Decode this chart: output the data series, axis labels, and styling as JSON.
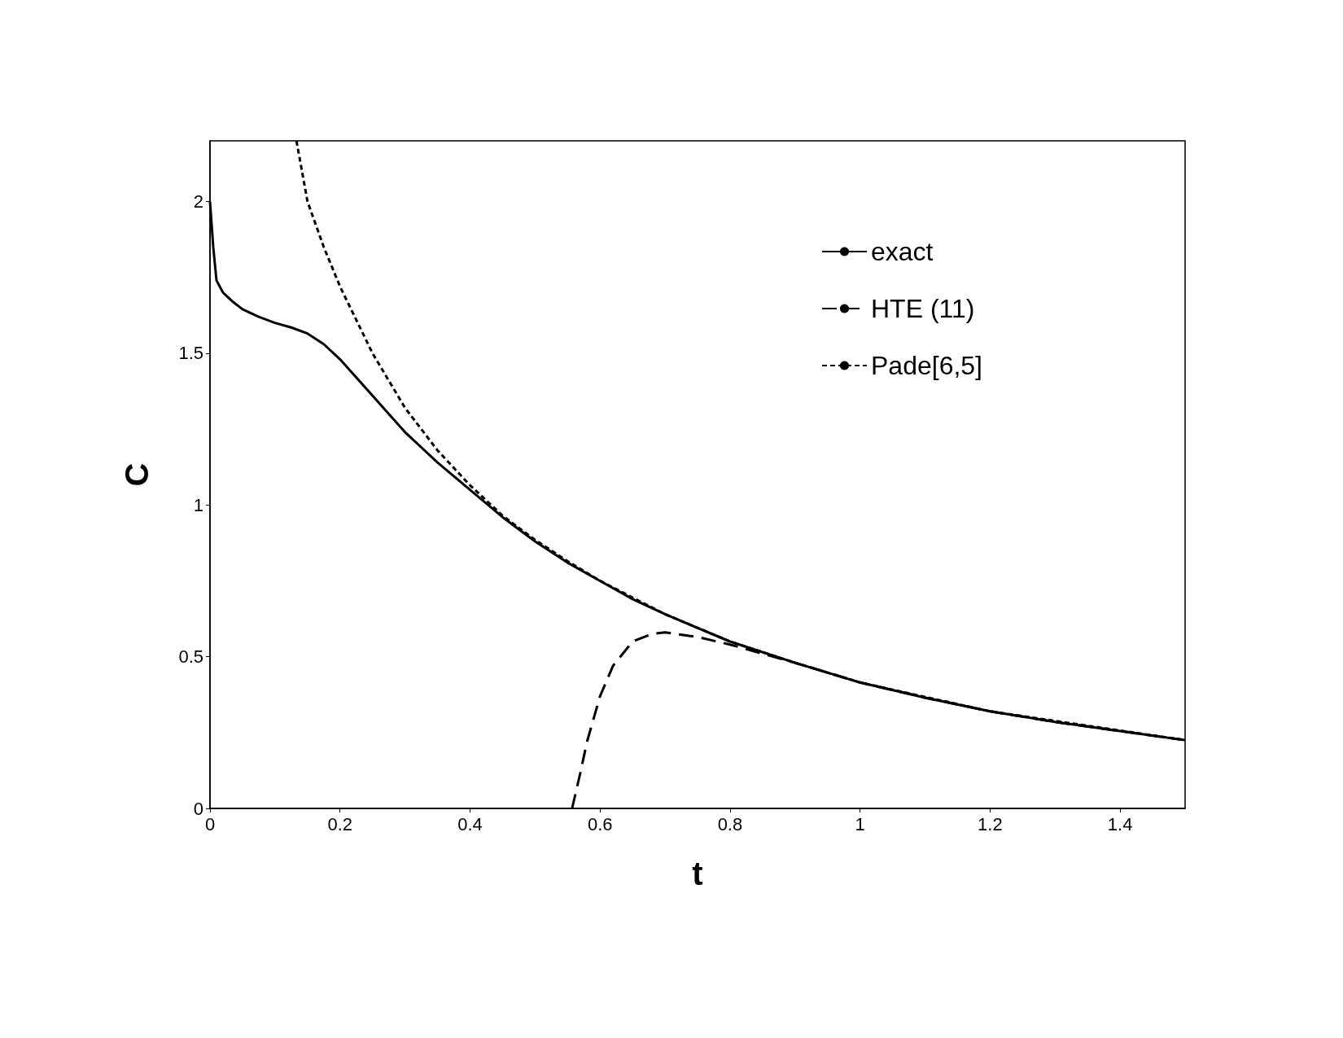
{
  "chart_data": {
    "type": "line",
    "xlabel": "t",
    "ylabel": "C",
    "xlim": [
      0,
      1.5
    ],
    "ylim": [
      0,
      2.2
    ],
    "xticks": [
      0,
      0.2,
      0.4,
      0.6,
      0.8,
      1,
      1.2,
      1.4
    ],
    "yticks": [
      0,
      0.5,
      1,
      1.5,
      2
    ],
    "grid": false,
    "legend": "top right",
    "marker": "none",
    "series": [
      {
        "name": "exact",
        "color": "#000000",
        "line_style": "solid",
        "x": [
          0,
          0.005,
          0.01,
          0.02,
          0.035,
          0.05,
          0.075,
          0.1,
          0.125,
          0.15,
          0.175,
          0.2,
          0.25,
          0.3,
          0.35,
          0.4,
          0.45,
          0.5,
          0.55,
          0.6,
          0.65,
          0.7,
          0.8,
          0.9,
          1,
          1.1,
          1.2,
          1.3,
          1.4,
          1.5
        ],
        "values": [
          2,
          1.85,
          1.74,
          1.7,
          1.67,
          1.645,
          1.62,
          1.6,
          1.585,
          1.565,
          1.53,
          1.48,
          1.36,
          1.24,
          1.14,
          1.05,
          0.96,
          0.88,
          0.81,
          0.75,
          0.69,
          0.64,
          0.55,
          0.48,
          0.415,
          0.365,
          0.32,
          0.285,
          0.255,
          0.225
        ]
      },
      {
        "name": "HTE (11)",
        "color": "#000000",
        "line_style": "dashed",
        "x": [
          0.557,
          0.57,
          0.58,
          0.6,
          0.62,
          0.65,
          0.68,
          0.7,
          0.75,
          0.8,
          0.9,
          1,
          1.1,
          1.2,
          1.3,
          1.4,
          1.5
        ],
        "values": [
          0,
          0.12,
          0.22,
          0.37,
          0.47,
          0.55,
          0.575,
          0.58,
          0.565,
          0.54,
          0.48,
          0.415,
          0.365,
          0.32,
          0.285,
          0.255,
          0.225
        ]
      },
      {
        "name": "Pade[6,5]",
        "color": "#000000",
        "line_style": "dotted",
        "x": [
          0.133,
          0.15,
          0.175,
          0.2,
          0.25,
          0.3,
          0.35,
          0.4,
          0.45,
          0.5,
          0.55,
          0.6,
          0.7,
          0.8,
          0.9,
          1,
          1.2,
          1.5
        ],
        "values": [
          2.2,
          2.0,
          1.85,
          1.72,
          1.5,
          1.32,
          1.18,
          1.065,
          0.965,
          0.885,
          0.815,
          0.75,
          0.64,
          0.55,
          0.48,
          0.415,
          0.32,
          0.225
        ]
      }
    ]
  }
}
